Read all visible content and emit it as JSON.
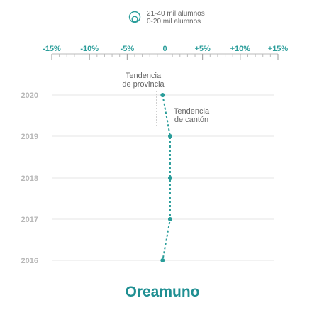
{
  "chart_data": {
    "type": "scatter",
    "title": "Oreamuno",
    "legend": {
      "placement": "top-center",
      "entries": [
        "21-40 mil alumnos",
        "0-20 mil alumnos"
      ]
    },
    "x_axis": {
      "range": [
        -15,
        15
      ],
      "unit": "%",
      "tick_labels": [
        "-15%",
        "-10%",
        "-5%",
        "0",
        "+5%",
        "+10%",
        "+15%"
      ],
      "tick_values": [
        -15,
        -10,
        -5,
        0,
        5,
        10,
        15
      ],
      "minor_step": 1
    },
    "y_axis": {
      "categories": [
        "2020",
        "2019",
        "2018",
        "2017",
        "2016"
      ]
    },
    "series": [
      {
        "name": "Tendencia de cantón",
        "color": "#2a9d9a",
        "points": [
          {
            "year": "2020",
            "x": -0.3
          },
          {
            "year": "2019",
            "x": 0.7
          },
          {
            "year": "2018",
            "x": 0.7
          },
          {
            "year": "2017",
            "x": 0.7
          },
          {
            "year": "2016",
            "x": -0.3
          }
        ]
      }
    ],
    "reference": {
      "label_lines": [
        "Tendencia",
        "de provincia"
      ],
      "x": -1.1,
      "color": "#bbbbbb"
    },
    "annotation": {
      "label_lines": [
        "Tendencia",
        "de cantón"
      ]
    },
    "colors": {
      "accent": "#2a9d9a",
      "title": "#1f8f92",
      "grid": "#e6e6e6",
      "year_label": "#b8b8b8",
      "text": "#666666"
    }
  }
}
